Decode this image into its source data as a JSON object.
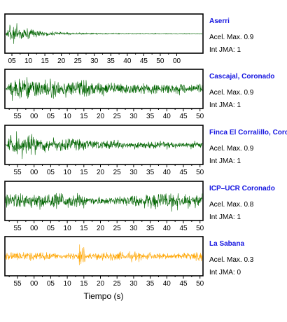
{
  "chart_data": {
    "type": "line",
    "xlabel": "Tiempo (s)",
    "grid": false,
    "series": [
      {
        "name": "Aserri",
        "color": "#006400",
        "amplitude": 0.9,
        "accel_label": "Acel. Max. 0.9",
        "jma_label": "Int JMA: 1",
        "xticks": [
          "05",
          "10",
          "15",
          "20",
          "25",
          "30",
          "35",
          "40",
          "45",
          "50",
          "00"
        ]
      },
      {
        "name": "Cascajal, Coronado",
        "color": "#006400",
        "amplitude": 0.9,
        "accel_label": "Acel. Max. 0.9",
        "jma_label": "Int JMA: 1",
        "xticks": [
          "55",
          "00",
          "05",
          "10",
          "15",
          "20",
          "25",
          "30",
          "35",
          "40",
          "45",
          "50"
        ]
      },
      {
        "name": "Finca El Corralillo, Coronado",
        "color": "#006400",
        "amplitude": 0.9,
        "accel_label": "Acel. Max. 0.9",
        "jma_label": "Int JMA: 1",
        "xticks": [
          "55",
          "00",
          "05",
          "10",
          "15",
          "20",
          "25",
          "30",
          "35",
          "40",
          "45",
          "50"
        ]
      },
      {
        "name": "ICP–UCR Coronado",
        "color": "#006400",
        "amplitude": 0.8,
        "accel_label": "Acel. Max. 0.8",
        "jma_label": "Int JMA: 1",
        "xticks": [
          "55",
          "00",
          "05",
          "10",
          "15",
          "20",
          "25",
          "30",
          "35",
          "40",
          "45",
          "50"
        ]
      },
      {
        "name": "La Sabana",
        "color": "#ffa500",
        "amplitude": 0.3,
        "accel_label": "Acel. Max. 0.3",
        "jma_label": "Int JMA: 0",
        "xticks": [
          "55",
          "00",
          "05",
          "10",
          "15",
          "20",
          "25",
          "30",
          "35",
          "40",
          "45",
          "50"
        ]
      }
    ]
  }
}
